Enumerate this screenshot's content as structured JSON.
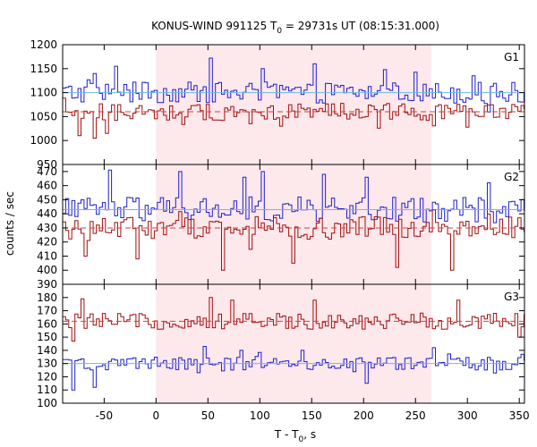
{
  "chart_data": {
    "type": "line",
    "title_parts": {
      "pre": "KONUS-WIND 991125 T",
      "sub": "0",
      "post": " = 29731s UT (08:15:31.000)"
    },
    "xlabel_parts": {
      "pre": "T - T",
      "sub": "0",
      "post": ", s"
    },
    "ylabel": "counts / sec",
    "x_range": [
      -90,
      355
    ],
    "x_ticks": [
      "-50",
      "0",
      "50",
      "100",
      "150",
      "200",
      "250",
      "300",
      "350"
    ],
    "highlight_interval": [
      0,
      265
    ],
    "colors": {
      "blue": "#2020c8",
      "red": "#a01010",
      "highlight": "#fde8ec",
      "mean_blue": "#6fb8e8",
      "mean_red": "#d04040"
    },
    "bin_width": 2.944,
    "panels": [
      {
        "name": "G1",
        "ylim": [
          950,
          1200
        ],
        "y_ticks": [
          "950",
          "1000",
          "1050",
          "1100",
          "1150",
          "1200"
        ],
        "series": [
          {
            "color": "blue",
            "mean": 1100,
            "amplitude": 22,
            "peaks": [
              [
                -60,
                1140
              ],
              [
                -40,
                1155
              ],
              [
                52,
                1172
              ],
              [
                100,
                1150
              ],
              [
                150,
                1160
              ],
              [
                220,
                1148
              ],
              [
                305,
                1135
              ]
            ]
          },
          {
            "color": "red",
            "mean": 1060,
            "amplitude": 18,
            "peaks": [
              [
                -75,
                1010
              ],
              [
                -60,
                1005
              ],
              [
                -50,
                1015
              ],
              [
                90,
                1035
              ],
              [
                120,
                1030
              ],
              [
                300,
                1028
              ]
            ]
          }
        ]
      },
      {
        "name": "G2",
        "ylim": [
          390,
          475
        ],
        "y_ticks": [
          "390",
          "400",
          "410",
          "420",
          "430",
          "440",
          "450",
          "460",
          "470"
        ],
        "series": [
          {
            "color": "blue",
            "mean": 443,
            "amplitude": 9,
            "peaks": [
              [
                -45,
                471
              ],
              [
                22,
                470
              ],
              [
                85,
                466
              ],
              [
                102,
                470
              ],
              [
                160,
                468
              ],
              [
                200,
                466
              ],
              [
                320,
                462
              ]
            ]
          },
          {
            "color": "red",
            "mean": 430,
            "amplitude": 8,
            "peaks": [
              [
                -70,
                410
              ],
              [
                -20,
                408
              ],
              [
                62,
                400
              ],
              [
                130,
                405
              ],
              [
                230,
                402
              ],
              [
                284,
                400
              ]
            ]
          }
        ]
      },
      {
        "name": "G3",
        "ylim": [
          100,
          190
        ],
        "y_ticks": [
          "100",
          "110",
          "120",
          "130",
          "140",
          "150",
          "160",
          "170",
          "180"
        ],
        "series": [
          {
            "color": "red",
            "mean": 162,
            "amplitude": 6,
            "peaks": [
              [
                -72,
                179
              ],
              [
                50,
                180
              ],
              [
                72,
                178
              ],
              [
                150,
                178
              ],
              [
                290,
                178
              ],
              [
                -80,
                147
              ],
              [
                350,
                150
              ]
            ]
          },
          {
            "color": "blue",
            "mean": 130,
            "amplitude": 5,
            "peaks": [
              [
                -82,
                110
              ],
              [
                -60,
                112
              ],
              [
                45,
                143
              ],
              [
                80,
                140
              ],
              [
                140,
                140
              ],
              [
                200,
                115
              ],
              [
                265,
                142
              ]
            ]
          }
        ]
      }
    ]
  }
}
